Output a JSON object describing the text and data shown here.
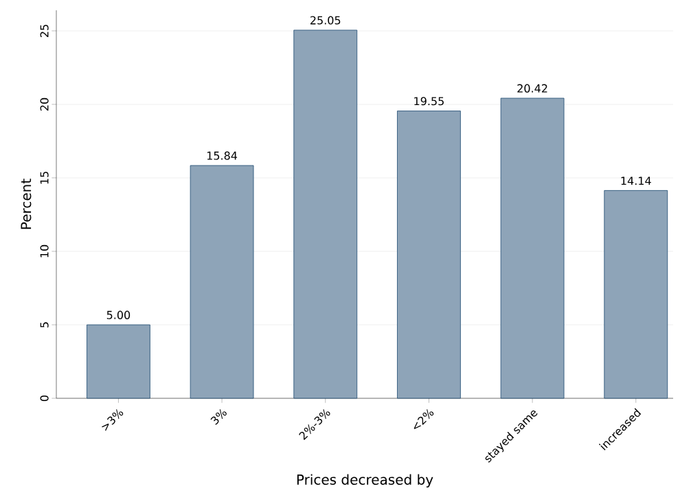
{
  "chart_data": {
    "type": "bar",
    "xlabel": "Prices decreased by",
    "ylabel": "Percent",
    "categories": [
      ">3%",
      "3%",
      "2%-3%",
      "<2%",
      "stayed same",
      "increased"
    ],
    "values": [
      5.0,
      15.84,
      25.05,
      19.55,
      20.42,
      14.14
    ],
    "value_labels": [
      "5.00",
      "15.84",
      "25.05",
      "19.55",
      "20.42",
      "14.14"
    ],
    "color": "#8ea4b8",
    "ylim": [
      0,
      26.4
    ],
    "yticks": [
      0,
      5,
      10,
      15,
      20,
      25
    ],
    "grid": "y"
  }
}
